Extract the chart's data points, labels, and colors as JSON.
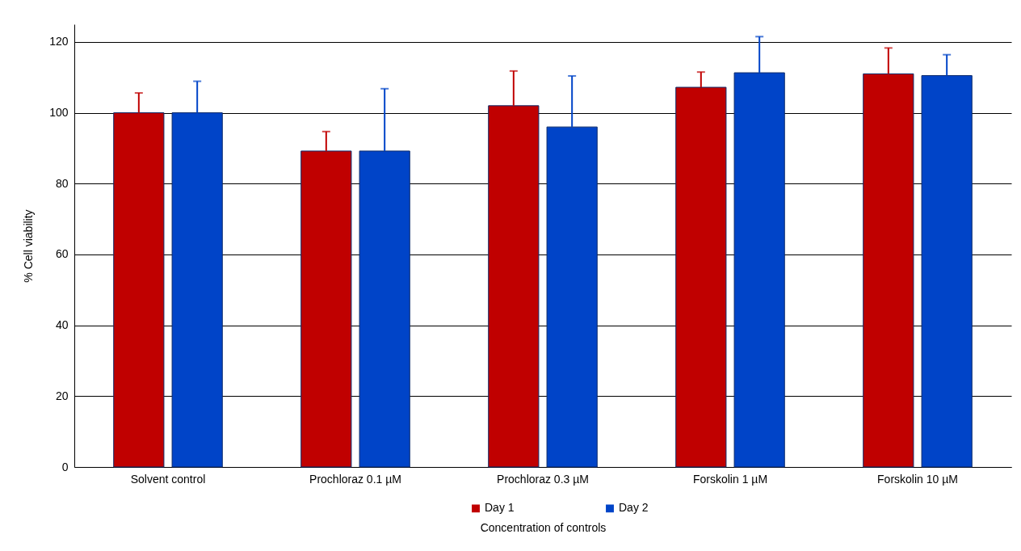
{
  "chart_data": {
    "type": "bar",
    "xlabel": "Concentration of controls",
    "ylabel": "% Cell viability",
    "categories": [
      "Solvent control",
      "Prochloraz 0.1 µM",
      "Prochloraz 0.3 µM",
      "Forskolin 1 µM",
      "Forskolin 10 µM"
    ],
    "series": [
      {
        "name": "Day 1",
        "color": "#c00000",
        "values": [
          100,
          89.2,
          102,
          107.2,
          111
        ],
        "errors": [
          [
            100,
            105.6
          ],
          [
            89.2,
            94.7
          ],
          [
            102,
            111.8
          ],
          [
            107.2,
            111.5
          ],
          [
            111,
            118.3
          ]
        ]
      },
      {
        "name": "Day 2",
        "color": "#0044c8",
        "values": [
          100,
          89.2,
          96,
          111.3,
          110.5
        ],
        "errors": [
          [
            100,
            108.9
          ],
          [
            89.2,
            106.8
          ],
          [
            96,
            110.4
          ],
          [
            111.3,
            121.5
          ],
          [
            110.5,
            116.4
          ]
        ]
      }
    ],
    "ylim": [
      0,
      125
    ],
    "yticks": [
      0,
      20,
      40,
      60,
      80,
      100,
      120
    ],
    "grid": "y",
    "legend": "bottom"
  }
}
